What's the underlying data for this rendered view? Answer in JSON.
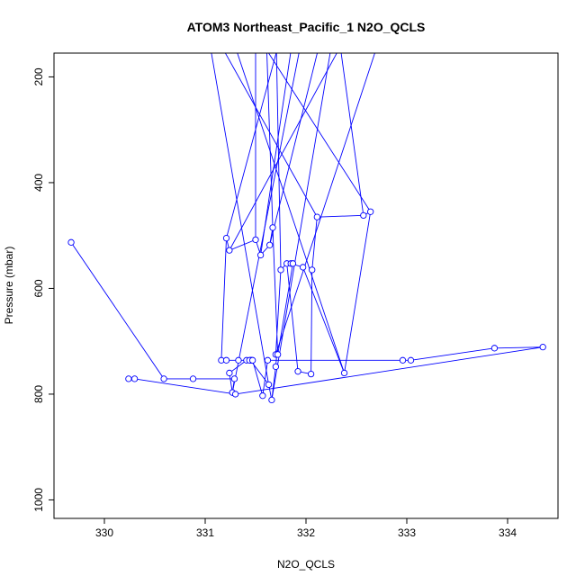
{
  "chart_data": {
    "type": "line",
    "title": "ATOM3 Northeast_Pacific_1 N2O_QCLS",
    "xlabel": "N2O_QCLS",
    "ylabel": "Pressure (mbar)",
    "xlim": [
      329.5,
      334.5
    ],
    "ylim": [
      1035,
      155
    ],
    "y_reversed": true,
    "grid": false,
    "x_ticks": [
      330,
      331,
      332,
      333,
      334
    ],
    "y_ticks": [
      200,
      400,
      600,
      800,
      1000
    ],
    "color": "#0000ff",
    "series": [
      {
        "values_x": [
          329.67,
          330.59,
          330.88,
          331.29,
          331.27,
          331.24,
          331.41,
          331.46,
          331.45,
          331.63,
          331.66,
          331.7,
          331.71,
          331.7,
          331.75,
          331.81,
          331.92,
          332.05,
          332.06,
          332.11,
          332.57,
          332.64,
          332.38,
          331.97,
          331.85,
          331.87,
          331.72,
          331.67,
          331.64,
          331.55,
          331.5,
          331.24,
          331.21,
          331.16,
          331.21,
          331.44,
          331.33,
          331.47,
          331.57,
          331.62,
          332.96,
          333.04,
          333.87,
          334.35,
          331.3,
          330.3,
          330.24
        ],
        "values_y": [
          513,
          771,
          771,
          771,
          797,
          760,
          736,
          736,
          736,
          782,
          811,
          748,
          725,
          725,
          565,
          553,
          757,
          762,
          565,
          465,
          462,
          455,
          760,
          560,
          553,
          553,
          725,
          485,
          518,
          537,
          508,
          528,
          505,
          736,
          736,
          736,
          736,
          736,
          803,
          736,
          736,
          736,
          713,
          711,
          800,
          771,
          771
        ],
        "continues_above_plot": true
      }
    ]
  }
}
